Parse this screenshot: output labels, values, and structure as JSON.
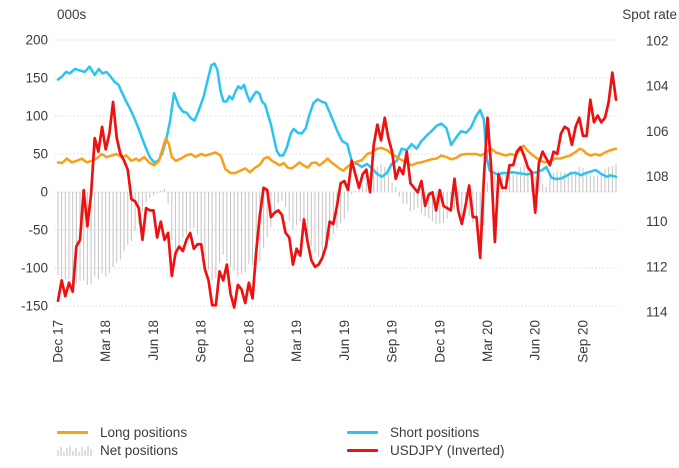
{
  "chart_data": {
    "type": "combo",
    "left_axis": {
      "title": "000s",
      "min": -150,
      "max": 200,
      "ticks": [
        200,
        150,
        100,
        50,
        0,
        -50,
        -100,
        -150
      ]
    },
    "right_axis": {
      "title": "Spot rate",
      "min": 102,
      "max": 114,
      "inverted": true,
      "ticks": [
        102,
        104,
        106,
        108,
        110,
        112,
        114
      ]
    },
    "x_axis": {
      "tick_labels": [
        "Dec 17",
        "Mar 18",
        "Jun 18",
        "Sep 18",
        "Dec 18",
        "Mar 19",
        "Jun 19",
        "Sep 19",
        "Dec 19",
        "Mar 20",
        "Jun 20",
        "Sep 20"
      ],
      "weeks_per_tick": 13,
      "total_weeks": 153
    },
    "grid_color": "#d8d8d8",
    "text_color": "#3c3c3c",
    "series": [
      {
        "name": "Long positions",
        "type": "line",
        "axis": "left",
        "color": "#F9A01B",
        "points": [
          [
            0,
            39
          ],
          [
            1.1,
            38
          ],
          [
            2.4,
            44
          ],
          [
            3.8,
            39
          ],
          [
            5.1,
            41
          ],
          [
            6.5,
            44
          ],
          [
            7.8,
            39
          ],
          [
            9.2,
            41
          ],
          [
            10.5,
            44
          ],
          [
            11.9,
            50
          ],
          [
            13.2,
            46
          ],
          [
            14.6,
            48
          ],
          [
            15.9,
            50
          ],
          [
            17.3,
            46
          ],
          [
            18.6,
            48
          ],
          [
            20,
            41
          ],
          [
            21.3,
            44
          ],
          [
            22.1,
            41
          ],
          [
            23.5,
            46
          ],
          [
            24.8,
            39
          ],
          [
            26.2,
            35
          ],
          [
            27.5,
            41
          ],
          [
            28.9,
            64
          ],
          [
            29.4,
            71
          ],
          [
            30.2,
            63
          ],
          [
            31,
            46
          ],
          [
            32.1,
            41
          ],
          [
            33.5,
            44
          ],
          [
            34.8,
            48
          ],
          [
            36.2,
            50
          ],
          [
            37.5,
            46
          ],
          [
            38.9,
            50
          ],
          [
            40.2,
            48
          ],
          [
            41.6,
            50
          ],
          [
            42.9,
            52
          ],
          [
            44.3,
            48
          ],
          [
            45.6,
            30
          ],
          [
            47,
            25
          ],
          [
            48.3,
            25
          ],
          [
            49.6,
            28
          ],
          [
            51,
            31
          ],
          [
            52.3,
            26
          ],
          [
            53.7,
            32
          ],
          [
            55,
            36
          ],
          [
            56.1,
            44
          ],
          [
            57.2,
            46
          ],
          [
            58.3,
            41
          ],
          [
            59.4,
            38
          ],
          [
            60.4,
            35
          ],
          [
            61.5,
            38
          ],
          [
            62.6,
            32
          ],
          [
            63.7,
            31
          ],
          [
            64.8,
            35
          ],
          [
            65.8,
            39
          ],
          [
            66.9,
            35
          ],
          [
            68,
            32
          ],
          [
            69.1,
            38
          ],
          [
            70.2,
            39
          ],
          [
            71.2,
            35
          ],
          [
            72.3,
            39
          ],
          [
            73.4,
            44
          ],
          [
            74.5,
            39
          ],
          [
            75.6,
            35
          ],
          [
            76.6,
            31
          ],
          [
            77.7,
            28
          ],
          [
            78.8,
            33
          ],
          [
            80.1,
            38
          ],
          [
            81.5,
            40
          ],
          [
            82.8,
            42
          ],
          [
            84.2,
            50
          ],
          [
            85.5,
            52
          ],
          [
            86.9,
            57
          ],
          [
            88.2,
            58
          ],
          [
            89.6,
            55
          ],
          [
            90.9,
            50
          ],
          [
            92.3,
            46
          ],
          [
            93.6,
            42
          ],
          [
            95,
            39
          ],
          [
            96.3,
            35
          ],
          [
            97.7,
            38
          ],
          [
            99,
            39
          ],
          [
            100.4,
            41
          ],
          [
            101.7,
            43
          ],
          [
            103.1,
            44
          ],
          [
            104.4,
            48
          ],
          [
            105.8,
            46
          ],
          [
            107.1,
            43
          ],
          [
            108.5,
            45
          ],
          [
            109.8,
            49
          ],
          [
            111.2,
            50
          ],
          [
            112.5,
            50
          ],
          [
            113.9,
            50
          ],
          [
            115.2,
            48
          ],
          [
            116.6,
            52
          ],
          [
            117.9,
            57
          ],
          [
            119.3,
            52
          ],
          [
            120.6,
            50
          ],
          [
            122,
            48
          ],
          [
            123.3,
            50
          ],
          [
            124.7,
            48
          ],
          [
            126,
            57
          ],
          [
            126.8,
            61
          ],
          [
            127.8,
            55
          ],
          [
            128.9,
            50
          ],
          [
            130,
            46
          ],
          [
            131.4,
            41
          ],
          [
            132.7,
            39
          ],
          [
            134.1,
            41
          ],
          [
            135.4,
            44
          ],
          [
            136.8,
            44
          ],
          [
            138.1,
            46
          ],
          [
            139.5,
            48
          ],
          [
            140.8,
            52
          ],
          [
            142.2,
            57
          ],
          [
            143,
            55
          ],
          [
            144.1,
            50
          ],
          [
            145.2,
            48
          ],
          [
            146.3,
            50
          ],
          [
            147.6,
            48
          ],
          [
            149,
            52
          ],
          [
            150.5,
            55
          ],
          [
            152,
            57
          ]
        ]
      },
      {
        "name": "Short positions",
        "type": "line",
        "axis": "left",
        "color": "#2BC4F0",
        "points": [
          [
            0,
            148
          ],
          [
            1.1,
            152
          ],
          [
            2.2,
            158
          ],
          [
            3.2,
            156
          ],
          [
            4.6,
            162
          ],
          [
            5.9,
            160
          ],
          [
            7.3,
            158
          ],
          [
            8.6,
            165
          ],
          [
            10,
            154
          ],
          [
            11.1,
            162
          ],
          [
            12.1,
            156
          ],
          [
            13.2,
            158
          ],
          [
            14.3,
            152
          ],
          [
            15.4,
            145
          ],
          [
            16.5,
            141
          ],
          [
            17.5,
            130
          ],
          [
            18.6,
            119
          ],
          [
            19.7,
            109
          ],
          [
            20.8,
            97
          ],
          [
            21.9,
            84
          ],
          [
            22.9,
            71
          ],
          [
            24,
            57
          ],
          [
            25.1,
            45
          ],
          [
            26.2,
            39
          ],
          [
            27.3,
            41
          ],
          [
            28.3,
            50
          ],
          [
            29.4,
            67
          ],
          [
            30.5,
            93
          ],
          [
            31.6,
            130
          ],
          [
            32.9,
            113
          ],
          [
            34,
            106
          ],
          [
            35.1,
            104
          ],
          [
            36.2,
            97
          ],
          [
            37.2,
            94
          ],
          [
            38.3,
            107
          ],
          [
            39.7,
            126
          ],
          [
            41,
            152
          ],
          [
            41.8,
            167
          ],
          [
            42.6,
            169
          ],
          [
            43.4,
            161
          ],
          [
            44.3,
            132
          ],
          [
            45.1,
            119
          ],
          [
            45.9,
            119
          ],
          [
            46.7,
            126
          ],
          [
            47.5,
            122
          ],
          [
            48.3,
            132
          ],
          [
            49.1,
            139
          ],
          [
            49.9,
            136
          ],
          [
            50.7,
            141
          ],
          [
            51.5,
            128
          ],
          [
            52.3,
            119
          ],
          [
            53.1,
            126
          ],
          [
            54,
            132
          ],
          [
            54.8,
            130
          ],
          [
            55.6,
            119
          ],
          [
            56.4,
            115
          ],
          [
            57.2,
            102
          ],
          [
            58,
            89
          ],
          [
            58.8,
            71
          ],
          [
            59.6,
            54
          ],
          [
            60.4,
            48
          ],
          [
            61.3,
            48
          ],
          [
            62.3,
            58
          ],
          [
            63.4,
            77
          ],
          [
            64.2,
            83
          ],
          [
            65.3,
            78
          ],
          [
            66.4,
            77
          ],
          [
            67.5,
            84
          ],
          [
            68.5,
            102
          ],
          [
            69.6,
            117
          ],
          [
            70.7,
            122
          ],
          [
            71.8,
            119
          ],
          [
            72.9,
            117
          ],
          [
            73.9,
            106
          ],
          [
            75,
            93
          ],
          [
            76.1,
            80
          ],
          [
            77.4,
            67
          ],
          [
            78.8,
            63
          ],
          [
            80.1,
            39
          ],
          [
            81.5,
            37
          ],
          [
            82.8,
            33
          ],
          [
            84.2,
            37
          ],
          [
            85.5,
            31
          ],
          [
            86.9,
            24
          ],
          [
            88.2,
            20
          ],
          [
            89.6,
            25
          ],
          [
            90.9,
            37
          ],
          [
            92.3,
            41
          ],
          [
            93.6,
            57
          ],
          [
            95,
            55
          ],
          [
            96.3,
            63
          ],
          [
            97.7,
            57
          ],
          [
            99,
            67
          ],
          [
            100.4,
            74
          ],
          [
            101.7,
            80
          ],
          [
            103.1,
            87
          ],
          [
            104.4,
            90
          ],
          [
            105.8,
            84
          ],
          [
            107.1,
            62
          ],
          [
            108.5,
            72
          ],
          [
            109.8,
            80
          ],
          [
            111.2,
            78
          ],
          [
            112.5,
            85
          ],
          [
            113.9,
            100
          ],
          [
            115,
            108
          ],
          [
            116,
            95
          ],
          [
            116.8,
            45
          ],
          [
            117.6,
            28
          ],
          [
            118.4,
            26
          ],
          [
            119.8,
            23
          ],
          [
            121.1,
            25
          ],
          [
            122.5,
            25
          ],
          [
            123.8,
            26
          ],
          [
            125.2,
            25
          ],
          [
            126.5,
            24
          ],
          [
            127.8,
            23
          ],
          [
            129.2,
            25
          ],
          [
            130.5,
            26
          ],
          [
            131.9,
            29
          ],
          [
            133,
            33
          ],
          [
            134.4,
            19
          ],
          [
            135.7,
            17
          ],
          [
            137.1,
            18
          ],
          [
            138.4,
            21
          ],
          [
            139.8,
            25
          ],
          [
            141.1,
            25
          ],
          [
            142.5,
            22
          ],
          [
            143.8,
            25
          ],
          [
            145.2,
            27
          ],
          [
            146.5,
            29
          ],
          [
            147.9,
            24
          ],
          [
            149.5,
            20
          ],
          [
            150.5,
            22
          ],
          [
            152,
            20
          ]
        ]
      },
      {
        "name": "Net positions",
        "type": "bar",
        "axis": "left",
        "color": "#C8C8C8",
        "derived": "long_minus_short"
      },
      {
        "name": "USDJPY (Inverted)",
        "type": "line",
        "axis": "right",
        "color": "#ED1111",
        "weekly_values": [
          113.5,
          112.6,
          113.3,
          112.7,
          113.1,
          111.1,
          110.8,
          108.6,
          110.2,
          108.8,
          106.3,
          106.9,
          105.8,
          106.8,
          106.1,
          104.7,
          106.3,
          107.0,
          107.3,
          107.7,
          109.0,
          109.1,
          109.4,
          110.8,
          109.4,
          109.5,
          109.5,
          110.7,
          110.0,
          110.8,
          110.5,
          112.4,
          111.4,
          111.1,
          111.3,
          110.8,
          110.5,
          111.2,
          111.0,
          111.0,
          112.1,
          112.6,
          113.7,
          113.7,
          112.2,
          112.6,
          111.9,
          113.2,
          113.8,
          112.8,
          113.0,
          113.6,
          112.7,
          113.4,
          111.3,
          109.7,
          108.5,
          108.6,
          109.8,
          109.6,
          109.5,
          109.7,
          110.5,
          110.7,
          111.9,
          111.2,
          111.5,
          109.9,
          110.9,
          111.7,
          112.0,
          111.9,
          111.6,
          111.1,
          110.0,
          110.1,
          109.3,
          108.3,
          108.2,
          108.6,
          107.3,
          107.9,
          108.5,
          107.9,
          107.7,
          108.7,
          106.6,
          105.7,
          106.4,
          105.4,
          106.3,
          106.9,
          108.1,
          107.6,
          107.9,
          106.9,
          108.3,
          108.5,
          108.7,
          108.2,
          109.3,
          108.8,
          108.7,
          109.5,
          108.6,
          109.3,
          109.4,
          109.5,
          108.1,
          109.5,
          110.1,
          109.3,
          108.4,
          109.8,
          109.8,
          111.6,
          108.1,
          105.4,
          107.6,
          110.9,
          107.9,
          108.5,
          108.5,
          107.5,
          107.5,
          106.9,
          106.7,
          107.1,
          107.6,
          107.8,
          109.6,
          107.4,
          106.9,
          107.2,
          107.5,
          106.9,
          107.0,
          106.1,
          105.8,
          105.9,
          106.6,
          105.8,
          105.4,
          106.2,
          106.2,
          104.6,
          105.6,
          105.3,
          105.6,
          105.4,
          104.7,
          103.4,
          104.6
        ]
      }
    ]
  },
  "legend": {
    "items": [
      {
        "label": "Long positions",
        "swatch": "line",
        "color": "#F9A01B"
      },
      {
        "label": "Net positions",
        "swatch": "bars",
        "color": "#BDBDBD"
      },
      {
        "label": "Short positions",
        "swatch": "line",
        "color": "#2BC4F0"
      },
      {
        "label": "USDJPY (Inverted)",
        "swatch": "line",
        "color": "#ED1111"
      }
    ]
  }
}
